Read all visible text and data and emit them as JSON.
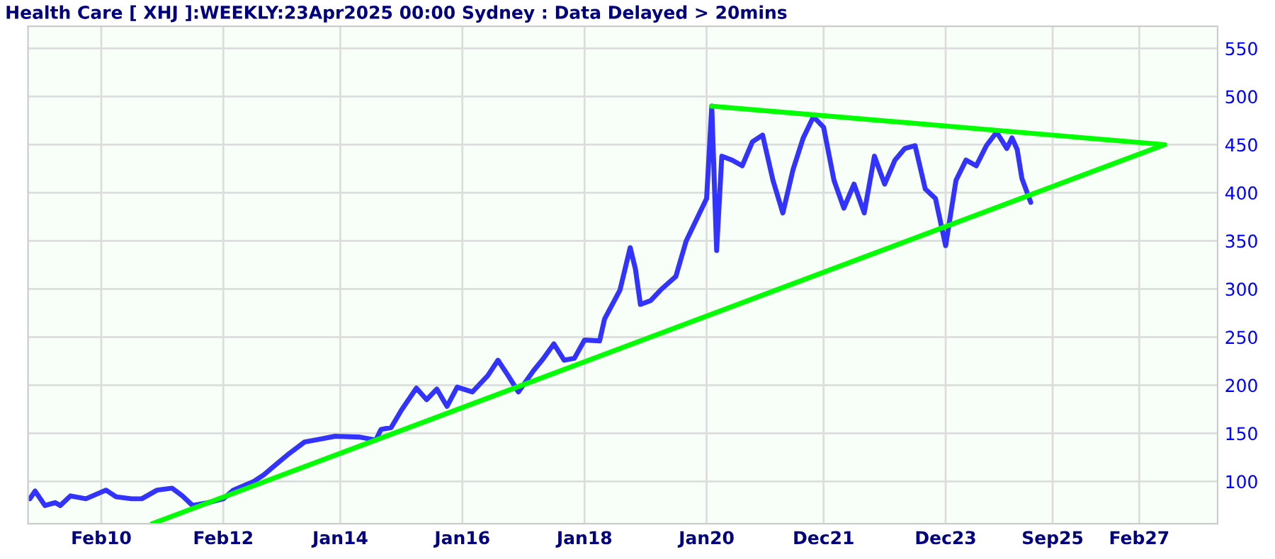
{
  "chart_data": {
    "type": "line",
    "title": "Health Care [ XHJ ]:WEEKLY:23Apr2025 00:00 Sydney : Data Delayed > 20mins",
    "xlim": [
      "2008-11-20",
      "2028-05-15"
    ],
    "ylim": [
      56,
      573
    ],
    "xticks": [
      {
        "value": "2010-02",
        "label": "Feb10"
      },
      {
        "value": "2012-02",
        "label": "Feb12"
      },
      {
        "value": "2014-01",
        "label": "Jan14"
      },
      {
        "value": "2016-01",
        "label": "Jan16"
      },
      {
        "value": "2018-01",
        "label": "Jan18"
      },
      {
        "value": "2020-01",
        "label": "Jan20"
      },
      {
        "value": "2021-12",
        "label": "Dec21"
      },
      {
        "value": "2023-12",
        "label": "Dec23"
      },
      {
        "value": "2025-09",
        "label": "Sep25"
      },
      {
        "value": "2027-02",
        "label": "Feb27"
      }
    ],
    "yticks": [
      100,
      150,
      200,
      250,
      300,
      350,
      400,
      450,
      500,
      550
    ],
    "grid": true,
    "series": [
      {
        "color": "#3333ff",
        "x": [
          "2008-12",
          "2009-01",
          "2009-03",
          "2009-05",
          "2009-06",
          "2009-08",
          "2009-11",
          "2010-03",
          "2010-05",
          "2010-08",
          "2010-10",
          "2011-01",
          "2011-04",
          "2011-06",
          "2011-08",
          "2011-11",
          "2012-02",
          "2012-04",
          "2012-08",
          "2012-10",
          "2012-12",
          "2013-03",
          "2013-06",
          "2013-09",
          "2013-12",
          "2014-05",
          "2014-08",
          "2014-09",
          "2014-11",
          "2015-01",
          "2015-04",
          "2015-06",
          "2015-08",
          "2015-10",
          "2015-12",
          "2016-03",
          "2016-06",
          "2016-08",
          "2016-10",
          "2016-12",
          "2017-03",
          "2017-05",
          "2017-07",
          "2017-09",
          "2017-11",
          "2018-01",
          "2018-04",
          "2018-05",
          "2018-08",
          "2018-10",
          "2018-11",
          "2018-12",
          "2019-02",
          "2019-04",
          "2019-07",
          "2019-09",
          "2019-11",
          "2020-01",
          "2020-02",
          "2020-03",
          "2020-04",
          "2020-06",
          "2020-08",
          "2020-10",
          "2020-12",
          "2021-02",
          "2021-04",
          "2021-06",
          "2021-08",
          "2021-10",
          "2021-12",
          "2022-02",
          "2022-04",
          "2022-06",
          "2022-08",
          "2022-10",
          "2022-12",
          "2023-02",
          "2023-04",
          "2023-06",
          "2023-08",
          "2023-10",
          "2023-12",
          "2024-02",
          "2024-04",
          "2024-06",
          "2024-08",
          "2024-10",
          "2024-12",
          "2025-01",
          "2025-02",
          "2025-03",
          "2025-04-23"
        ],
        "values": [
          82,
          90,
          75,
          78,
          75,
          85,
          82,
          91,
          84,
          82,
          82,
          91,
          93,
          85,
          75,
          78,
          82,
          91,
          100,
          107,
          116,
          129,
          141,
          144,
          147,
          146,
          143,
          154,
          156,
          174,
          197,
          185,
          196,
          178,
          198,
          193,
          210,
          226,
          210,
          193,
          215,
          228,
          243,
          226,
          228,
          247,
          246,
          269,
          299,
          343,
          321,
          284,
          288,
          299,
          313,
          350,
          372,
          394,
          490,
          340,
          438,
          434,
          428,
          453,
          460,
          413,
          379,
          424,
          457,
          479,
          468,
          413,
          384,
          409,
          379,
          438,
          409,
          434,
          446,
          449,
          404,
          394,
          345,
          413,
          434,
          428,
          449,
          463,
          446,
          457,
          445,
          415,
          390
        ]
      },
      {
        "color": "#00ff00",
        "x": [
          "2020-02",
          "2027-07"
        ],
        "values": [
          490,
          450
        ]
      },
      {
        "color": "#00ff00",
        "x": [
          "2010-12",
          "2027-07"
        ],
        "values": [
          56,
          450
        ]
      }
    ]
  }
}
